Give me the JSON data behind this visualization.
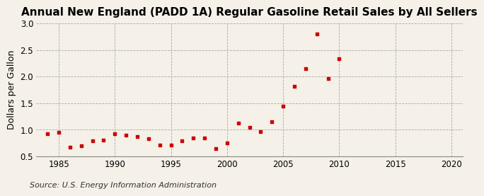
{
  "title": "Annual New England (PADD 1A) Regular Gasoline Retail Sales by All Sellers",
  "ylabel": "Dollars per Gallon",
  "source": "Source: U.S. Energy Information Administration",
  "background_color": "#f5f0e8",
  "marker_color": "#cc0000",
  "xlim": [
    1983,
    2021
  ],
  "ylim": [
    0.5,
    3.0
  ],
  "xticks": [
    1985,
    1990,
    1995,
    2000,
    2005,
    2010,
    2015,
    2020
  ],
  "yticks": [
    0.5,
    1.0,
    1.5,
    2.0,
    2.5,
    3.0
  ],
  "years": [
    1984,
    1985,
    1986,
    1987,
    1988,
    1989,
    1990,
    1991,
    1992,
    1993,
    1994,
    1995,
    1996,
    1997,
    1998,
    1999,
    2000,
    2001,
    2002,
    2003,
    2004,
    2005,
    2006,
    2007,
    2008,
    2009,
    2010
  ],
  "values": [
    0.93,
    0.95,
    0.67,
    0.7,
    0.79,
    0.8,
    0.92,
    0.9,
    0.87,
    0.83,
    0.72,
    0.72,
    0.79,
    0.84,
    0.85,
    0.65,
    0.75,
    1.13,
    1.05,
    0.96,
    1.15,
    1.45,
    1.82,
    2.15,
    2.8,
    1.96,
    2.33
  ],
  "title_fontsize": 11,
  "label_fontsize": 9,
  "tick_fontsize": 8.5,
  "source_fontsize": 8
}
